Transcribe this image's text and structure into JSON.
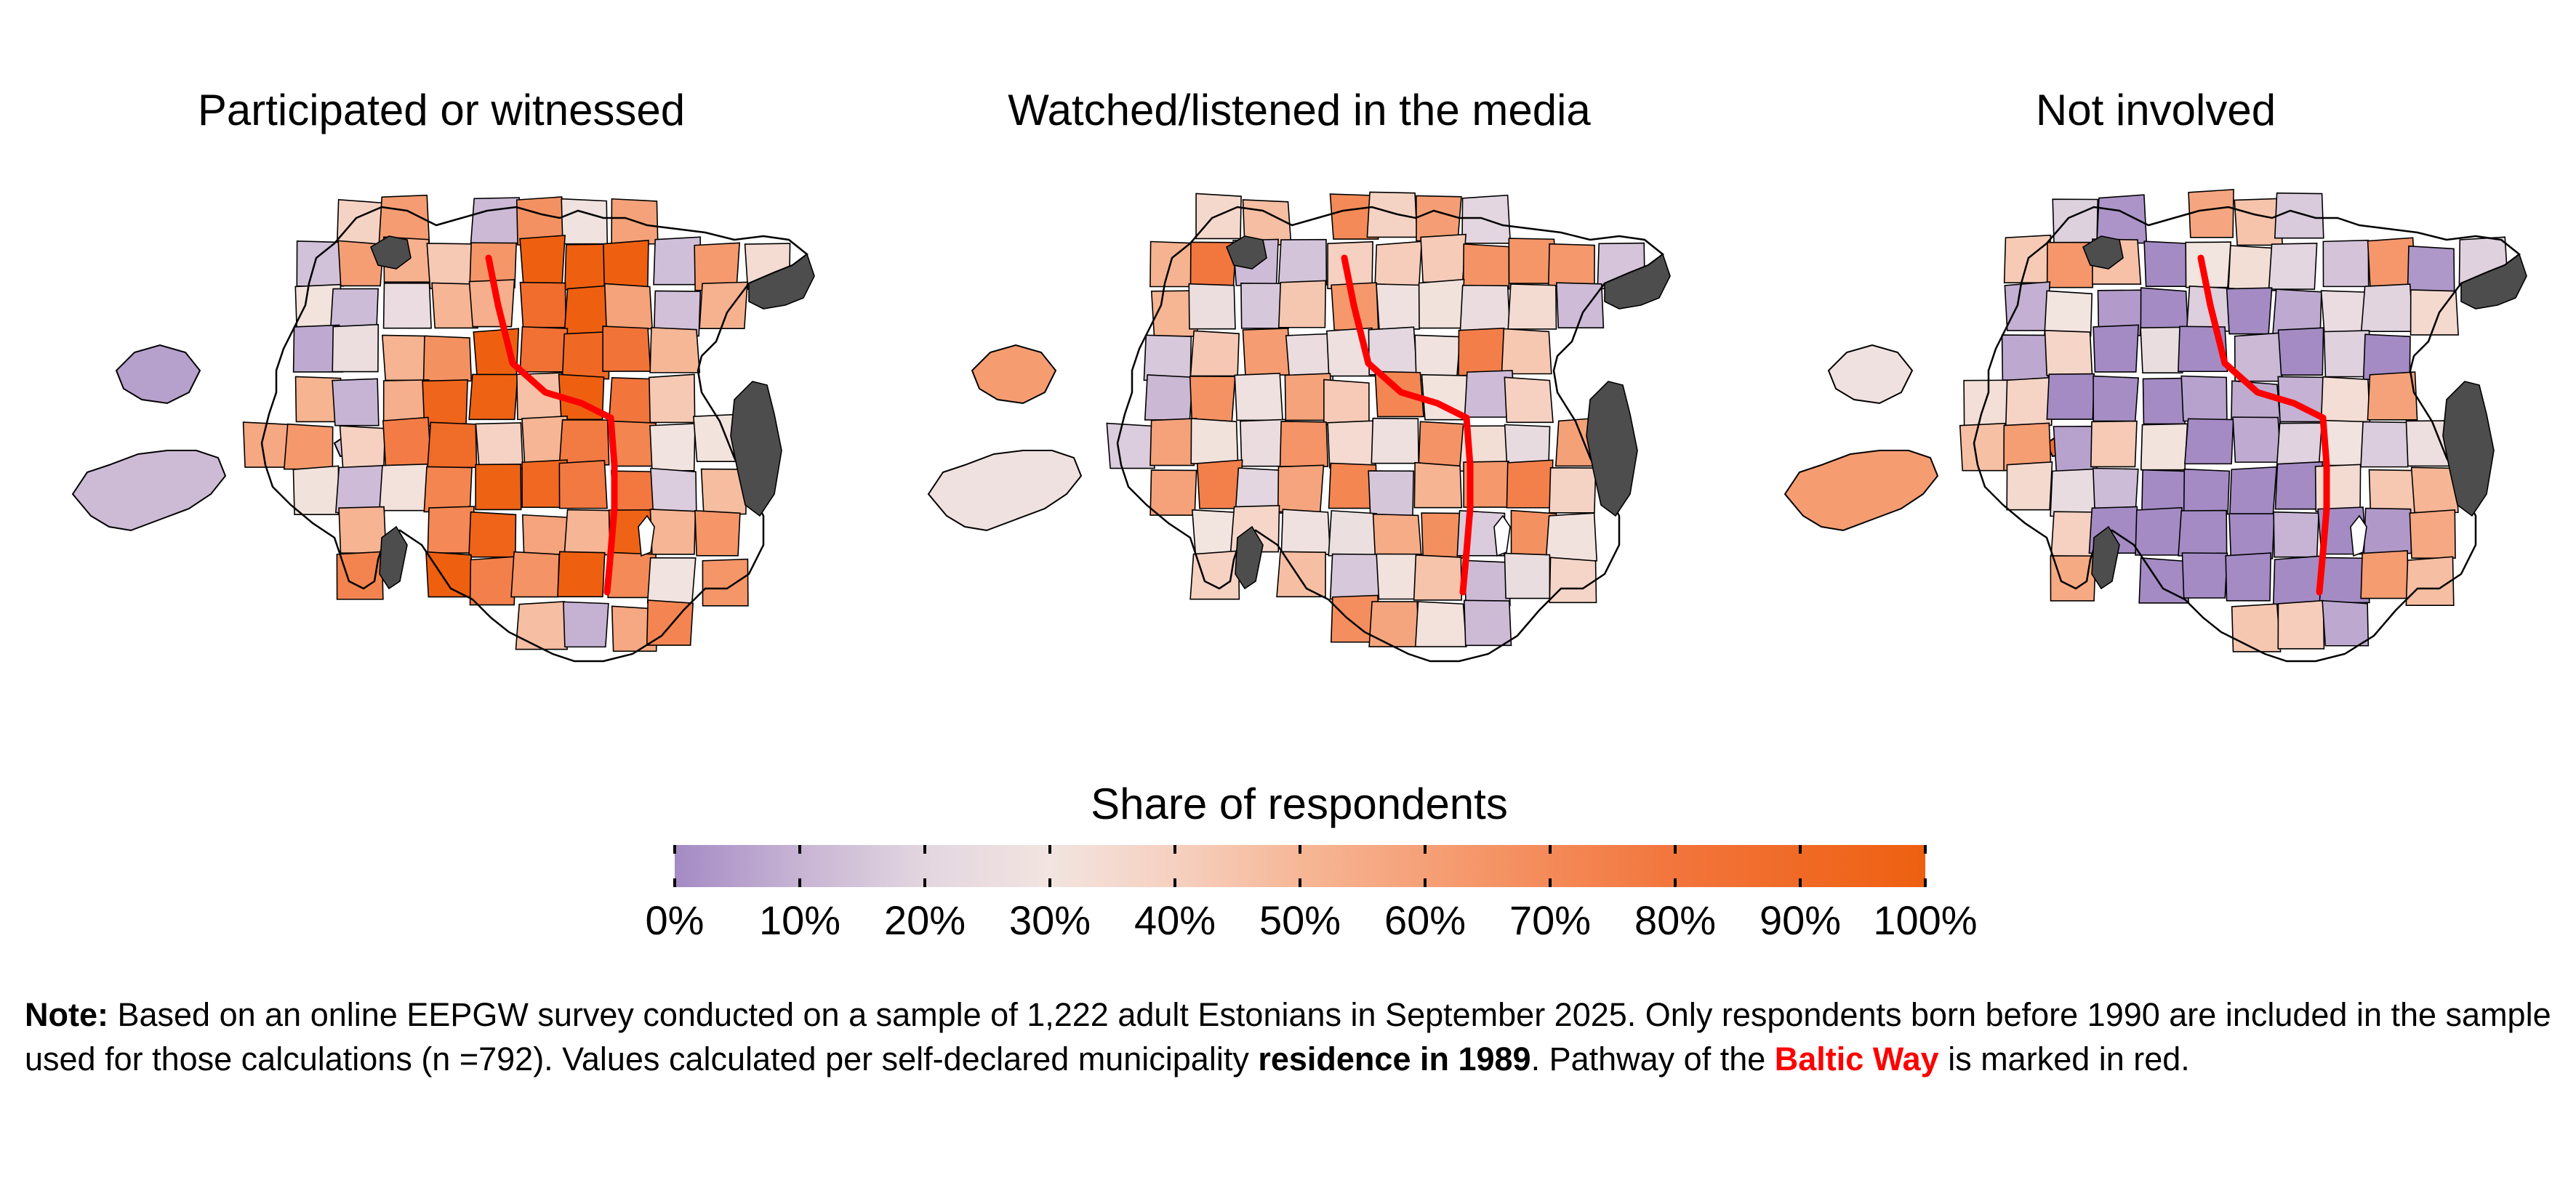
{
  "panels": [
    {
      "title": "Participated or witnessed"
    },
    {
      "title": "Watched/listened in the media"
    },
    {
      "title": "Not involved"
    }
  ],
  "legend": {
    "title": "Share of respondents",
    "ticks": [
      "0%",
      "10%",
      "20%",
      "30%",
      "40%",
      "50%",
      "60%",
      "70%",
      "80%",
      "90%",
      "100%"
    ],
    "colors": {
      "low": "#a48bc4",
      "mid": "#f2e4df",
      "high": "#ee6010"
    }
  },
  "map_colors": {
    "no_data": "#4d4d4d",
    "baltic_way": "#ff0000",
    "border": "#000000"
  },
  "note": {
    "label": "Note:",
    "text1": " Based on an online EEPGW survey conducted on a sample of 1,222 adult Estonians in September 2025. Only respondents born before 1990 are included in the sample used for those calculations (n =792). Values calculated per self-declared municipality ",
    "bold": "residence in 1989",
    "text2": ". Pathway of the ",
    "red": "Baltic Way",
    "text3": " is marked in red."
  }
}
